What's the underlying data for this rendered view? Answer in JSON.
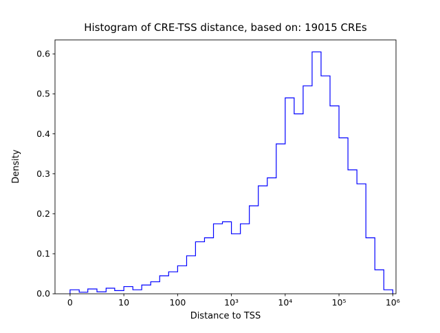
{
  "chart_data": {
    "type": "step-histogram",
    "title": "Histogram of CRE-TSS distance, based on: 19015 CREs",
    "n_cres": 19015,
    "xlabel": "Distance to TSS",
    "ylabel": "Density",
    "x_scale": "symlog",
    "x_tick_labels": [
      "0",
      "10",
      "100",
      "10³",
      "10⁴",
      "10⁵",
      "10⁶"
    ],
    "y_tick_labels": [
      "0.0",
      "0.1",
      "0.2",
      "0.3",
      "0.4",
      "0.5",
      "0.6"
    ],
    "y_tick_values": [
      0,
      0.1,
      0.2,
      0.3,
      0.4,
      0.5,
      0.6
    ],
    "ylim": [
      0,
      0.635
    ],
    "line_color": "#0000ff",
    "bin_edges": [
      0,
      1.7,
      3.3,
      5,
      6.7,
      8.3,
      10,
      14.7,
      21.5,
      31.6,
      46.4,
      68.1,
      100,
      147,
      215,
      316,
      464,
      681,
      1000,
      1468,
      2154,
      3162,
      4642,
      6813,
      10000,
      14678,
      21544,
      31623,
      46416,
      68129,
      100000,
      146780,
      215443,
      316228,
      464159,
      681292,
      1000000
    ],
    "densities": [
      0.01,
      0.004,
      0.012,
      0.005,
      0.014,
      0.008,
      0.018,
      0.01,
      0.022,
      0.03,
      0.045,
      0.055,
      0.07,
      0.095,
      0.13,
      0.14,
      0.175,
      0.18,
      0.15,
      0.175,
      0.22,
      0.27,
      0.29,
      0.375,
      0.49,
      0.45,
      0.52,
      0.605,
      0.545,
      0.47,
      0.39,
      0.31,
      0.275,
      0.14,
      0.06,
      0.01
    ]
  }
}
